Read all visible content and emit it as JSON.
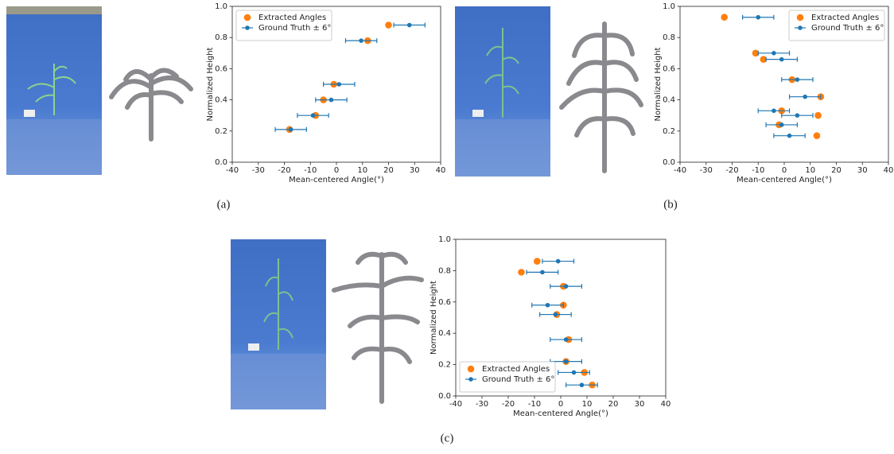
{
  "chart_data": [
    {
      "type": "scatter",
      "caption": "(a)",
      "xlabel": "Mean-centered Angle(°)",
      "ylabel": "Normalized Height",
      "xlim": [
        -40,
        40
      ],
      "ylim": [
        0,
        1
      ],
      "xticks": [
        -40,
        -30,
        -20,
        -10,
        0,
        10,
        20,
        30,
        40
      ],
      "yticks": [
        {
          "value": 0,
          "label": "0.0"
        },
        0.2,
        0.4,
        0.6,
        0.8,
        {
          "value": 1,
          "label": "1.0"
        }
      ],
      "legend": "upper left",
      "series": [
        {
          "name": "Extracted Angles",
          "color": "#ff7f0e",
          "x": [
            20,
            12,
            -1,
            -5,
            -8,
            -18
          ],
          "y": [
            0.88,
            0.78,
            0.5,
            0.4,
            0.3,
            0.21
          ]
        },
        {
          "name": "Ground Truth ± 6°",
          "color": "#1f77b4",
          "x": [
            28,
            9.5,
            1,
            -2,
            -9,
            -17.5
          ],
          "y": [
            0.88,
            0.78,
            0.5,
            0.4,
            0.3,
            0.21
          ],
          "errors": [
            6,
            6,
            6,
            6,
            6,
            6
          ]
        }
      ]
    },
    {
      "type": "scatter",
      "caption": "(b)",
      "xlabel": "Mean-centered Angle(°)",
      "ylabel": "Normalized Height",
      "xlim": [
        -40,
        40
      ],
      "ylim": [
        0,
        1
      ],
      "xticks": [
        -40,
        -30,
        -20,
        -10,
        0,
        10,
        20,
        30,
        40
      ],
      "yticks": [
        {
          "value": 0,
          "label": "0.0"
        },
        0.2,
        0.4,
        0.6,
        0.8,
        {
          "value": 1,
          "label": "1.0"
        }
      ],
      "legend": "upper right",
      "series": [
        {
          "name": "Extracted Angles",
          "color": "#ff7f0e",
          "x": [
            -23,
            -11,
            -8,
            3,
            14,
            -1,
            13,
            -2,
            12.5
          ],
          "y": [
            0.93,
            0.7,
            0.66,
            0.53,
            0.42,
            0.33,
            0.3,
            0.24,
            0.17
          ]
        },
        {
          "name": "Ground Truth ± 6°",
          "color": "#1f77b4",
          "x": [
            -10,
            -4,
            -1,
            5,
            8,
            -4,
            5,
            -1,
            2
          ],
          "y": [
            0.93,
            0.7,
            0.66,
            0.53,
            0.42,
            0.33,
            0.3,
            0.24,
            0.17
          ],
          "errors": [
            6,
            6,
            6,
            6,
            6,
            6,
            6,
            6,
            6
          ]
        }
      ]
    },
    {
      "type": "scatter",
      "caption": "(c)",
      "xlabel": "Mean-centered Angle(°)",
      "ylabel": "Normalized Height",
      "xlim": [
        -40,
        40
      ],
      "ylim": [
        0,
        1
      ],
      "xticks": [
        -40,
        -30,
        -20,
        -10,
        0,
        10,
        20,
        30,
        40
      ],
      "yticks": [
        {
          "value": 0,
          "label": "0.0"
        },
        0.2,
        0.4,
        0.6,
        0.8,
        {
          "value": 1,
          "label": "1.0"
        }
      ],
      "legend": "lower left",
      "series": [
        {
          "name": "Extracted Angles",
          "color": "#ff7f0e",
          "x": [
            -9,
            -15,
            1,
            1,
            -1.5,
            3,
            2,
            9,
            12
          ],
          "y": [
            0.86,
            0.79,
            0.7,
            0.58,
            0.52,
            0.36,
            0.22,
            0.15,
            0.07
          ]
        },
        {
          "name": "Ground Truth ± 6°",
          "color": "#1f77b4",
          "x": [
            -1,
            -7,
            2,
            -5,
            -2,
            2,
            2,
            5,
            8
          ],
          "y": [
            0.86,
            0.79,
            0.7,
            0.58,
            0.52,
            0.36,
            0.22,
            0.15,
            0.07
          ],
          "errors": [
            6,
            6,
            6,
            6,
            6,
            6,
            6,
            6,
            6
          ]
        }
      ]
    }
  ]
}
